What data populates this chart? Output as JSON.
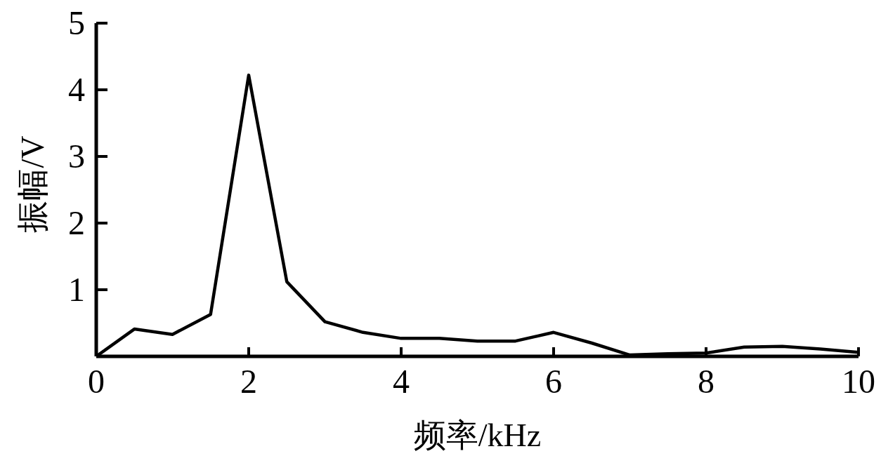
{
  "chart_data": {
    "type": "line",
    "xlabel": "频率/kHz",
    "ylabel": "振幅/V",
    "x": [
      0,
      0.5,
      1,
      1.5,
      2,
      2.5,
      3,
      3.5,
      4,
      4.5,
      5,
      5.5,
      6,
      6.5,
      7,
      7.5,
      8,
      8.5,
      9,
      9.5,
      10
    ],
    "series": [
      {
        "color": "#000000",
        "values": [
          0,
          0.41,
          0.33,
          0.63,
          4.22,
          1.12,
          0.52,
          0.36,
          0.27,
          0.27,
          0.23,
          0.23,
          0.36,
          0.2,
          0.02,
          0.04,
          0.05,
          0.14,
          0.15,
          0.11,
          0.06
        ]
      }
    ],
    "xlim": [
      0,
      10
    ],
    "ylim": [
      0,
      5
    ],
    "xticks": [
      0,
      2,
      4,
      6,
      8,
      10
    ],
    "yticks": [
      1,
      2,
      3,
      4,
      5
    ],
    "marker": "none",
    "line_style": "solid"
  }
}
